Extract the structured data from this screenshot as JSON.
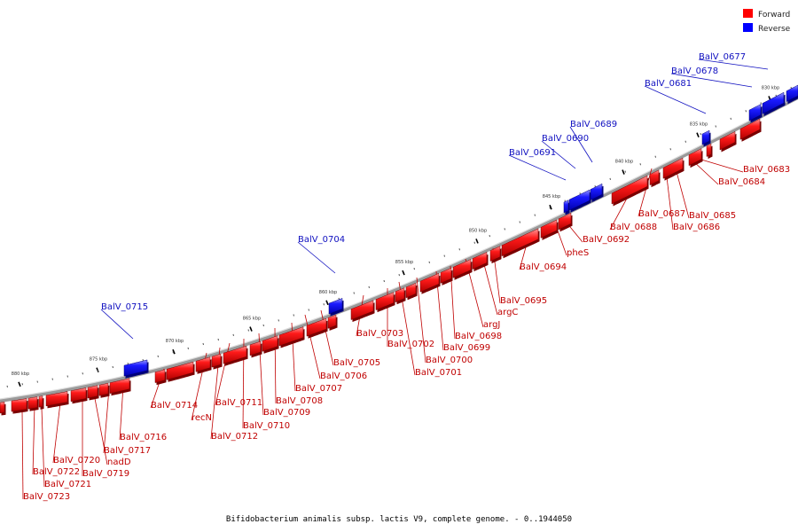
{
  "legend": {
    "forward": {
      "label": "Forward",
      "color": "#ff0000"
    },
    "reverse": {
      "label": "Reverse",
      "color": "#0000ff"
    }
  },
  "caption": "Bifidobacterium animalis subsp. lactis V9, complete genome. - 0..1944050",
  "ticks": [
    "830 kbp",
    "835 kbp",
    "840 kbp",
    "845 kbp",
    "850 kbp",
    "855 kbp",
    "860 kbp",
    "865 kbp",
    "870 kbp",
    "875 kbp",
    "880 kbp"
  ],
  "genes": {
    "reverse": [
      "BalV_0677",
      "BalV_0678",
      "BalV_0681",
      "BalV_0689",
      "BalV_0690",
      "BalV_0691",
      "BalV_0704",
      "BalV_0715"
    ],
    "forward": [
      "BalV_0683",
      "BalV_0684",
      "BalV_0685",
      "BalV_0686",
      "BalV_0687",
      "BalV_0688",
      "BalV_0692",
      "pheS",
      "BalV_0694",
      "BalV_0695",
      "argC",
      "argJ",
      "BalV_0698",
      "BalV_0699",
      "BalV_0700",
      "BalV_0701",
      "BalV_0702",
      "BalV_0703",
      "BalV_0705",
      "BalV_0706",
      "BalV_0707",
      "BalV_0708",
      "BalV_0709",
      "BalV_0710",
      "BalV_0711",
      "BalV_0712",
      "recN",
      "BalV_0714",
      "BalV_0716",
      "BalV_0717",
      "nadD",
      "BalV_0719",
      "BalV_0720",
      "BalV_0721",
      "BalV_0722",
      "BalV_0723"
    ]
  }
}
